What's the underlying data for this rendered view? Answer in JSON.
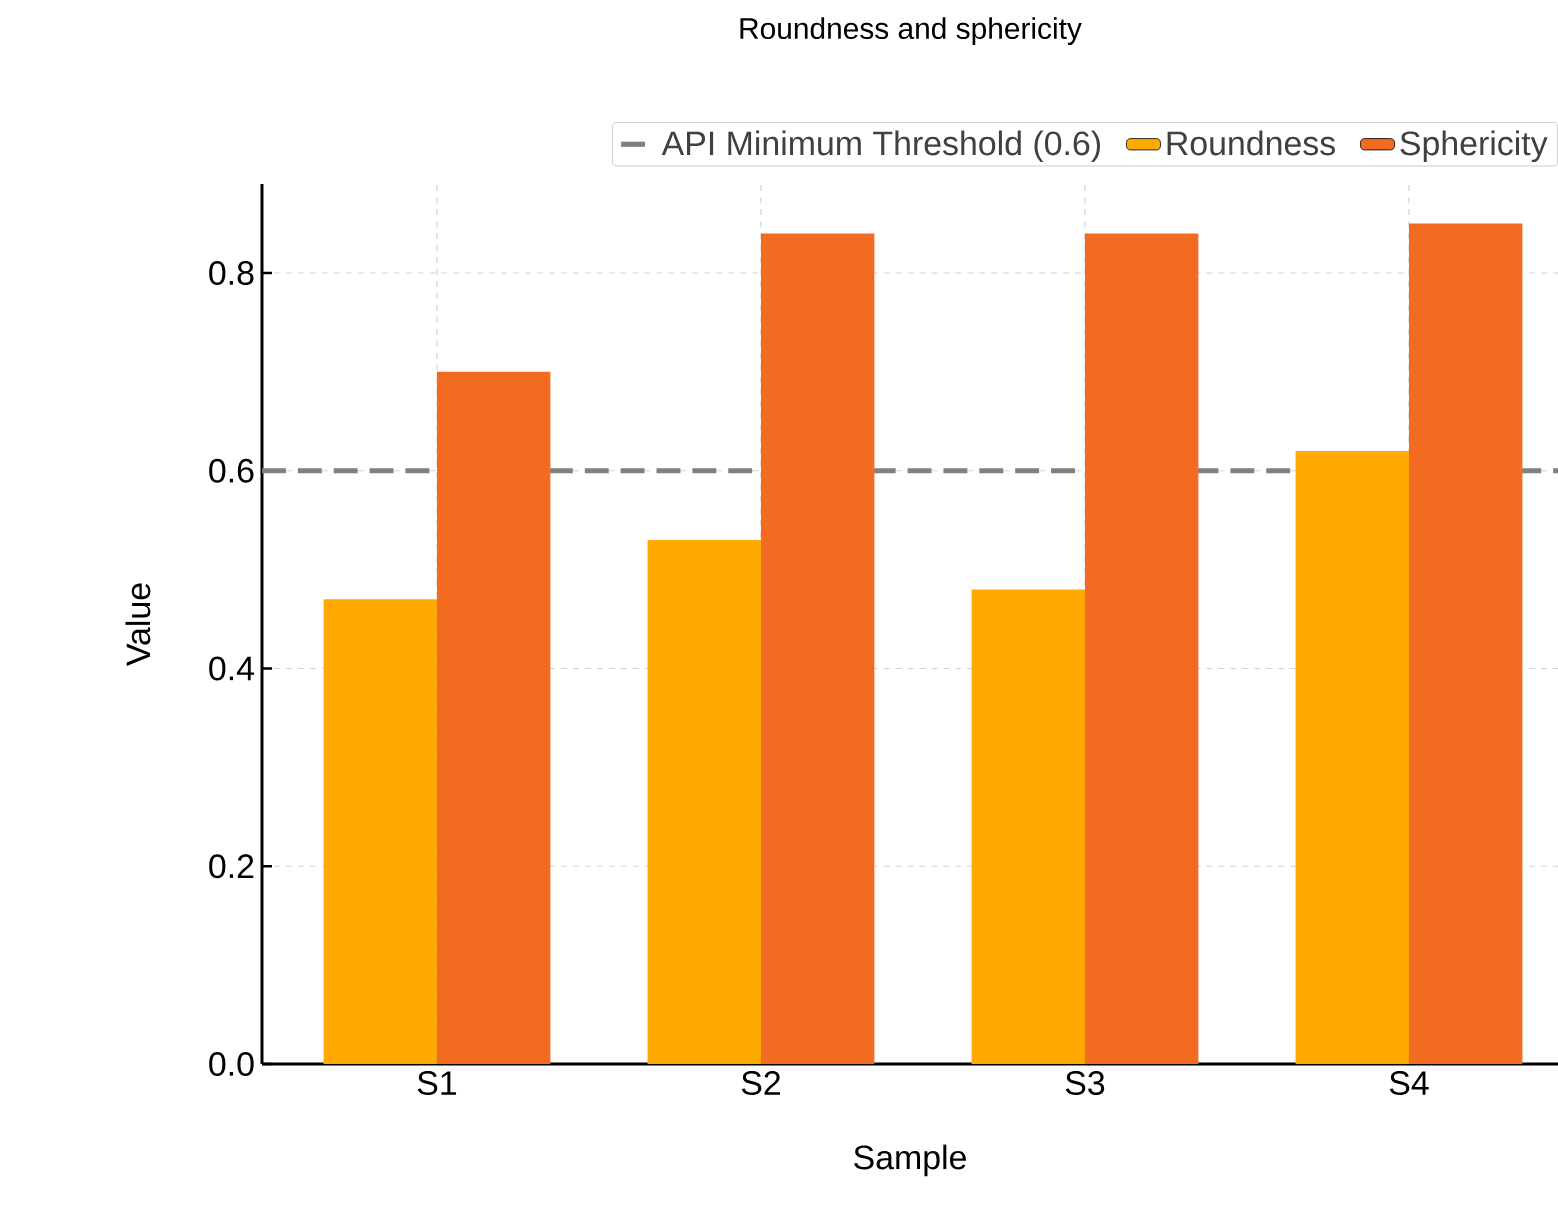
{
  "chart_data": {
    "type": "bar",
    "title": "Roundness and sphericity",
    "xlabel": "Sample",
    "ylabel": "Value",
    "categories": [
      "S1",
      "S2",
      "S3",
      "S4"
    ],
    "series": [
      {
        "name": "Roundness",
        "color": "#ffaa00",
        "values": [
          0.47,
          0.53,
          0.48,
          0.62
        ]
      },
      {
        "name": "Sphericity",
        "color": "#f26b21",
        "values": [
          0.7,
          0.84,
          0.84,
          0.85
        ]
      }
    ],
    "ylim": [
      0,
      0.89
    ],
    "yticks": [
      {
        "value": 0,
        "label": "0.0"
      },
      0.2,
      0.4,
      0.6,
      0.8
    ],
    "ref_lines": [
      {
        "axis": "y",
        "value": 0.6,
        "label": "API Minimum Threshold (0.6)",
        "color": "#808080",
        "line_style": "dashed"
      }
    ],
    "grid": true,
    "legend": "top right"
  }
}
